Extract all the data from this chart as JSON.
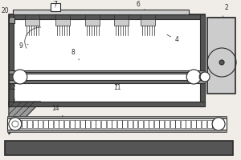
{
  "bg_color": "#f0ede8",
  "line_color": "#2a2a2a",
  "dark_fill": "#555555",
  "medium_fill": "#999999",
  "light_fill": "#cccccc",
  "white_fill": "#ffffff",
  "figsize": [
    3.0,
    2.0
  ],
  "dpi": 100,
  "label_fs": 5.5
}
